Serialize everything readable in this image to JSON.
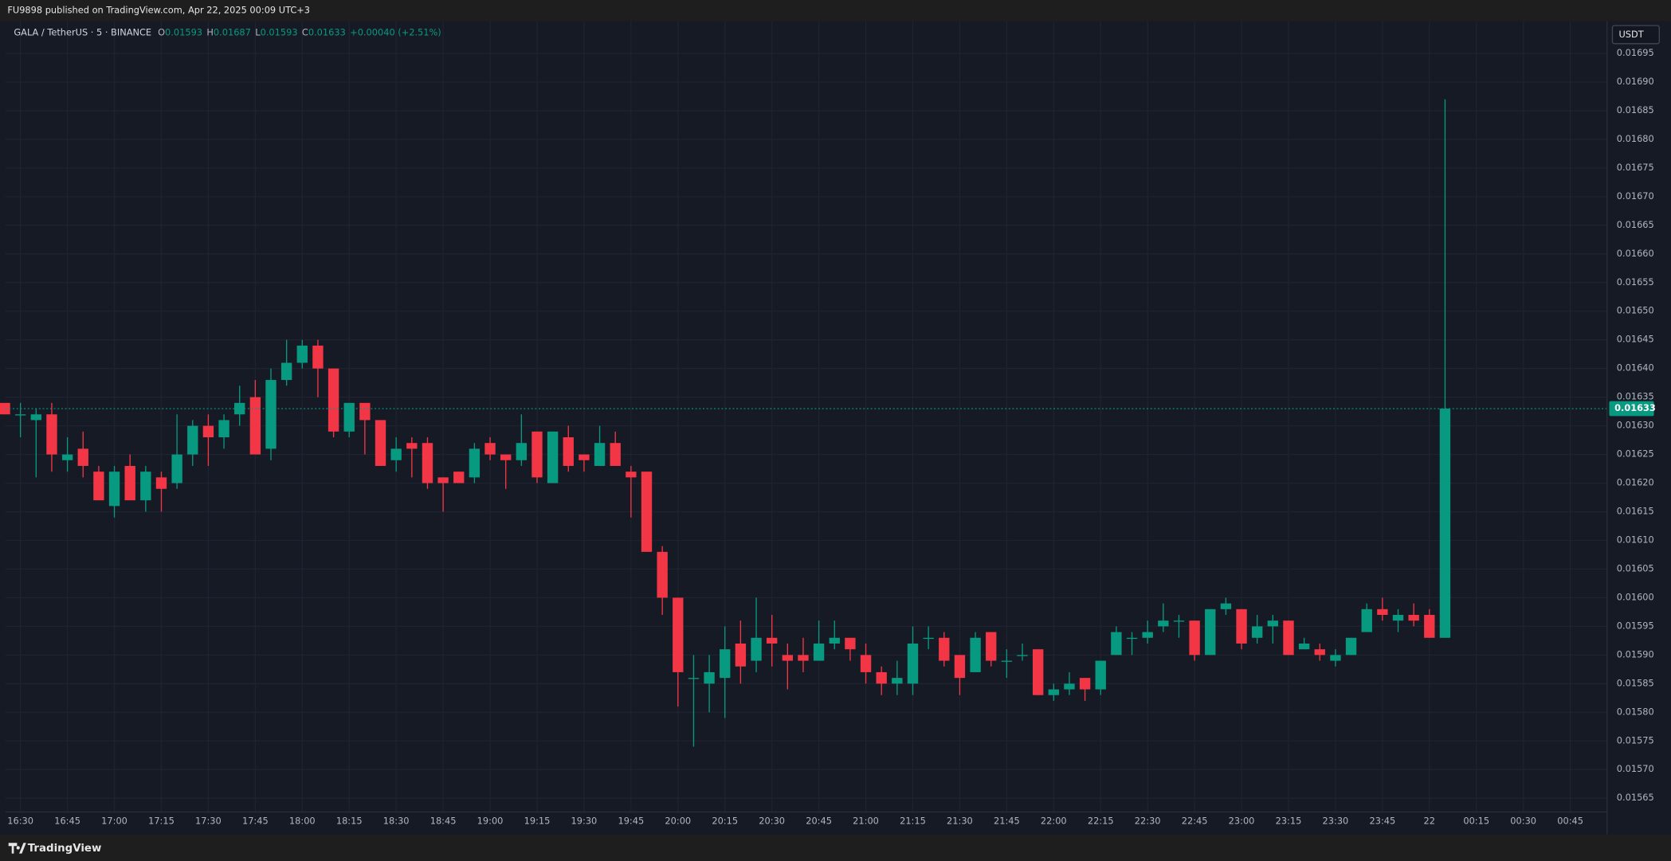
{
  "header": {
    "publisher": "FU9898 published on TradingView.com, Apr 22, 2025 00:09 UTC+3",
    "brand": "TradingView"
  },
  "chart_data": {
    "type": "candlestick",
    "symbol": "GALA / TetherUS · 5 · BINANCE",
    "ohlc_labels": [
      "O",
      "H",
      "L",
      "C"
    ],
    "change": "+0.00040 (+2.51%)",
    "currency": "USDT",
    "up_color": "#089981",
    "down_color": "#f23645",
    "grid": true,
    "categories": [
      null,
      "16:30",
      null,
      null,
      "16:45",
      null,
      null,
      "17:00",
      null,
      null,
      "17:15",
      null,
      null,
      "17:30",
      null,
      null,
      "17:45",
      null,
      null,
      "18:00",
      null,
      null,
      "18:15",
      null,
      null,
      "18:30",
      null,
      null,
      "18:45",
      null,
      null,
      "19:00",
      null,
      null,
      "19:15",
      null,
      null,
      "19:30",
      null,
      null,
      "19:45",
      null,
      null,
      "20:00",
      null,
      null,
      "20:15",
      null,
      null,
      "20:30",
      null,
      null,
      "20:45",
      null,
      null,
      "21:00",
      null,
      null,
      "21:15",
      null,
      null,
      "21:30",
      null,
      null,
      "21:45",
      null,
      null,
      "22:00",
      null,
      null,
      "22:15",
      null,
      null,
      "22:30",
      null,
      null,
      "22:45",
      null,
      null,
      "23:00",
      null,
      null,
      "23:15",
      null,
      null,
      "23:30",
      null,
      null,
      "23:45",
      null,
      null,
      "22",
      null,
      null,
      "00:15",
      null,
      null,
      "00:30",
      null,
      null,
      "00:45"
    ],
    "open": [
      0.01634,
      0.01632,
      0.01631,
      0.01632,
      0.01624,
      0.01626,
      0.01622,
      0.01616,
      0.01623,
      0.01617,
      0.01621,
      0.0162,
      0.01625,
      0.0163,
      0.01628,
      0.01632,
      0.01635,
      0.01626,
      0.01638,
      0.01641,
      0.01644,
      0.0164,
      0.01629,
      0.01634,
      0.01631,
      0.01624,
      0.01627,
      0.01627,
      0.01621,
      0.01622,
      0.01621,
      0.01627,
      0.01625,
      0.01624,
      0.01629,
      0.0162,
      0.01628,
      0.01625,
      0.01623,
      0.01627,
      0.01622,
      0.01622,
      0.01608,
      0.016,
      0.01586,
      0.01585,
      0.01586,
      0.01592,
      0.01589,
      0.01593,
      0.0159,
      0.0159,
      0.01589,
      0.01592,
      0.01593,
      0.0159,
      0.01587,
      0.01585,
      0.01585,
      0.01593,
      0.01593,
      0.0159,
      0.01587,
      0.01594,
      0.01589,
      0.0159,
      0.01591,
      0.01583,
      0.01584,
      0.01586,
      0.01584,
      0.0159,
      0.01593,
      0.01593,
      0.01595,
      0.01596,
      0.01596,
      0.0159,
      0.01598,
      0.01598,
      0.01593,
      0.01595,
      0.01596,
      0.01591,
      0.01591,
      0.01589,
      0.0159,
      0.01594,
      0.01598,
      0.01596,
      0.01597,
      0.01597,
      0.01593,
      null,
      null,
      null,
      null,
      null,
      null,
      null,
      null
    ],
    "high": [
      0.01634,
      0.01634,
      0.01633,
      0.01634,
      0.01628,
      0.01629,
      0.01623,
      0.01623,
      0.01625,
      0.01623,
      0.01622,
      0.01632,
      0.01631,
      0.01632,
      0.01632,
      0.01637,
      0.01638,
      0.0164,
      0.01645,
      0.01645,
      0.01645,
      0.0164,
      0.01634,
      0.01634,
      0.01631,
      0.01628,
      0.01628,
      0.01628,
      0.01621,
      0.01622,
      0.01627,
      0.01628,
      0.01625,
      0.01632,
      0.01629,
      0.01629,
      0.0163,
      0.01625,
      0.0163,
      0.01629,
      0.01623,
      0.01622,
      0.01609,
      0.016,
      0.0159,
      0.0159,
      0.01595,
      0.01596,
      0.016,
      0.01597,
      0.01592,
      0.01593,
      0.01596,
      0.01596,
      0.01593,
      0.01592,
      0.01588,
      0.01589,
      0.01595,
      0.01595,
      0.01594,
      0.0159,
      0.01594,
      0.01594,
      0.01591,
      0.01592,
      0.01591,
      0.01585,
      0.01587,
      0.01586,
      0.01589,
      0.01595,
      0.01594,
      0.01596,
      0.01599,
      0.01597,
      0.01596,
      0.01598,
      0.016,
      0.01598,
      0.01597,
      0.01597,
      0.01596,
      0.01593,
      0.01592,
      0.01591,
      0.01593,
      0.01599,
      0.016,
      0.01598,
      0.01599,
      0.01598,
      0.01687,
      null,
      null,
      null,
      null,
      null,
      null,
      null,
      null
    ],
    "low": [
      0.01632,
      0.01628,
      0.01621,
      0.01622,
      0.01622,
      0.01621,
      0.01617,
      0.01614,
      0.01617,
      0.01615,
      0.01615,
      0.01619,
      0.01623,
      0.01623,
      0.01626,
      0.0163,
      0.01625,
      0.01624,
      0.01637,
      0.0164,
      0.01635,
      0.01628,
      0.01628,
      0.01625,
      0.01623,
      0.01622,
      0.01621,
      0.01619,
      0.01615,
      0.0162,
      0.0162,
      0.01624,
      0.01619,
      0.01623,
      0.0162,
      0.0162,
      0.01622,
      0.01622,
      0.01623,
      0.01623,
      0.01614,
      0.01608,
      0.01597,
      0.01581,
      0.01574,
      0.0158,
      0.01579,
      0.01585,
      0.01587,
      0.01588,
      0.01584,
      0.01587,
      0.01589,
      0.01591,
      0.01589,
      0.01585,
      0.01583,
      0.01583,
      0.01583,
      0.01591,
      0.01588,
      0.01583,
      0.01587,
      0.01588,
      0.01586,
      0.01589,
      0.01583,
      0.01582,
      0.01583,
      0.01582,
      0.01583,
      0.0159,
      0.0159,
      0.01592,
      0.01594,
      0.01593,
      0.01589,
      0.0159,
      0.01597,
      0.01591,
      0.01592,
      0.01592,
      0.0159,
      0.01591,
      0.01589,
      0.01588,
      0.0159,
      0.01594,
      0.01596,
      0.01594,
      0.01595,
      0.01593,
      0.01593,
      null,
      null,
      null,
      null,
      null,
      null,
      null,
      null
    ],
    "close": [
      0.01632,
      0.01632,
      0.01632,
      0.01625,
      0.01625,
      0.01623,
      0.01617,
      0.01622,
      0.01617,
      0.01622,
      0.01619,
      0.01625,
      0.0163,
      0.01628,
      0.01631,
      0.01634,
      0.01625,
      0.01638,
      0.01641,
      0.01644,
      0.0164,
      0.01629,
      0.01634,
      0.01631,
      0.01623,
      0.01626,
      0.01626,
      0.0162,
      0.0162,
      0.0162,
      0.01626,
      0.01625,
      0.01624,
      0.01627,
      0.01621,
      0.01629,
      0.01623,
      0.01624,
      0.01627,
      0.01623,
      0.01621,
      0.01608,
      0.016,
      0.01587,
      0.01586,
      0.01587,
      0.01591,
      0.01588,
      0.01593,
      0.01592,
      0.01589,
      0.01589,
      0.01592,
      0.01593,
      0.01591,
      0.01587,
      0.01585,
      0.01586,
      0.01592,
      0.01593,
      0.01589,
      0.01586,
      0.01593,
      0.01589,
      0.01589,
      0.0159,
      0.01583,
      0.01584,
      0.01585,
      0.01584,
      0.01589,
      0.01594,
      0.01593,
      0.01594,
      0.01596,
      0.01596,
      0.0159,
      0.01598,
      0.01599,
      0.01592,
      0.01595,
      0.01596,
      0.0159,
      0.01592,
      0.0159,
      0.0159,
      0.01593,
      0.01598,
      0.01597,
      0.01597,
      0.01596,
      0.01593,
      0.01633,
      null,
      null,
      null,
      null,
      null,
      null,
      null,
      null
    ],
    "ylim": [
      0.015626,
      0.017006
    ],
    "yticks": [
      0.01565,
      {
        "value": 0.0157,
        "label": "0.01570"
      },
      0.01575,
      {
        "value": 0.0158,
        "label": "0.01580"
      },
      0.01585,
      {
        "value": 0.0159,
        "label": "0.01590"
      },
      0.01595,
      {
        "value": 0.016,
        "label": "0.01600"
      },
      0.01605,
      {
        "value": 0.0161,
        "label": "0.01610"
      },
      0.01615,
      {
        "value": 0.0162,
        "label": "0.01620"
      },
      0.01625,
      {
        "value": 0.0163,
        "label": "0.01630"
      },
      0.01635,
      {
        "value": 0.0164,
        "label": "0.01640"
      },
      0.01645,
      {
        "value": 0.0165,
        "label": "0.01650"
      },
      0.01655,
      {
        "value": 0.0166,
        "label": "0.01660"
      },
      0.01665,
      {
        "value": 0.0167,
        "label": "0.01670"
      },
      0.01675,
      {
        "value": 0.0168,
        "label": "0.01680"
      },
      0.01685,
      {
        "value": 0.0169,
        "label": "0.01690"
      },
      0.01695
    ]
  }
}
